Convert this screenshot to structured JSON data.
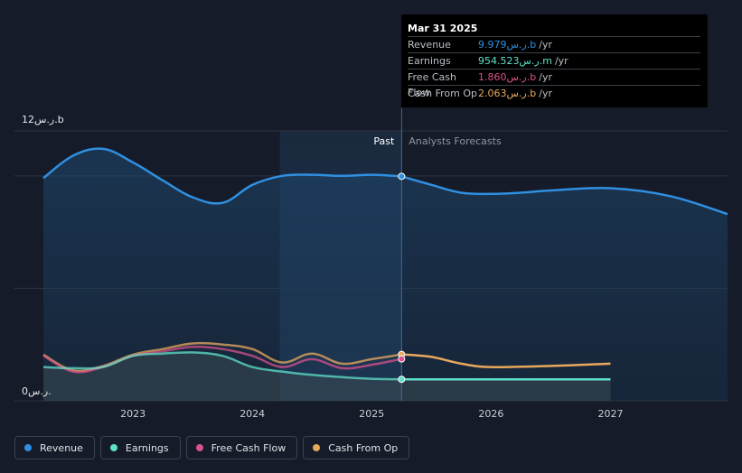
{
  "colors": {
    "revenue": "#2f8fe0",
    "earnings": "#5fe0c8",
    "free_cash_flow": "#d9508c",
    "cash_from_op": "#e8a85c",
    "grid": "#2c3342",
    "past_shade": "#1b2a3e"
  },
  "tooltip": {
    "date": "Mar 31 2025",
    "rows": [
      {
        "name": "Revenue",
        "value": "9.979ر.س.b",
        "unit": "/yr",
        "color": "#2f8fe0"
      },
      {
        "name": "Earnings",
        "value": "954.523ر.س.m",
        "unit": "/yr",
        "color": "#5fe0c8"
      },
      {
        "name": "Free Cash Flow",
        "value": "1.860ر.س.b",
        "unit": "/yr",
        "color": "#d9508c"
      },
      {
        "name": "Cash From Op",
        "value": "2.063ر.س.b",
        "unit": "/yr",
        "color": "#e8a85c"
      }
    ]
  },
  "regions": {
    "past": "Past",
    "forecast": "Analysts Forecasts"
  },
  "legend": [
    {
      "label": "Revenue",
      "color": "#2f8fe0"
    },
    {
      "label": "Earnings",
      "color": "#5fe0c8"
    },
    {
      "label": "Free Cash Flow",
      "color": "#d9508c"
    },
    {
      "label": "Cash From Op",
      "color": "#e8a85c"
    }
  ],
  "chart_data": {
    "type": "line",
    "y_top_label": "12ر.س.b",
    "y_bottom_label": "0ر.س.",
    "ylim": [
      0,
      12
    ],
    "xlim": [
      2022.25,
      2027.98
    ],
    "x_ticks": [
      2023,
      2024,
      2025,
      2026,
      2027
    ],
    "x_tick_labels": [
      "2023",
      "2024",
      "2025",
      "2026",
      "2027"
    ],
    "past_start": 2024.23,
    "past_end": 2025.25,
    "highlight_x": 2025.25,
    "grid": true,
    "series": [
      {
        "name": "Revenue",
        "key": "revenue",
        "area": true,
        "points": [
          [
            2022.25,
            9.9
          ],
          [
            2022.5,
            10.9
          ],
          [
            2022.75,
            11.2
          ],
          [
            2023.0,
            10.6
          ],
          [
            2023.25,
            9.8
          ],
          [
            2023.5,
            9.05
          ],
          [
            2023.75,
            8.8
          ],
          [
            2024.0,
            9.6
          ],
          [
            2024.25,
            10.0
          ],
          [
            2024.5,
            10.05
          ],
          [
            2024.75,
            10.0
          ],
          [
            2025.0,
            10.05
          ],
          [
            2025.25,
            9.979
          ],
          [
            2025.5,
            9.6
          ],
          [
            2025.75,
            9.25
          ],
          [
            2026.0,
            9.2
          ],
          [
            2026.25,
            9.25
          ],
          [
            2026.5,
            9.35
          ],
          [
            2027.0,
            9.45
          ],
          [
            2027.5,
            9.1
          ],
          [
            2027.98,
            8.3
          ]
        ]
      },
      {
        "name": "Earnings",
        "key": "earnings",
        "area": true,
        "points": [
          [
            2022.25,
            1.5
          ],
          [
            2022.5,
            1.45
          ],
          [
            2022.75,
            1.5
          ],
          [
            2023.0,
            2.0
          ],
          [
            2023.25,
            2.1
          ],
          [
            2023.5,
            2.15
          ],
          [
            2023.75,
            2.0
          ],
          [
            2024.0,
            1.5
          ],
          [
            2024.25,
            1.3
          ],
          [
            2024.5,
            1.15
          ],
          [
            2024.75,
            1.05
          ],
          [
            2025.0,
            0.98
          ],
          [
            2025.25,
            0.955
          ],
          [
            2025.5,
            0.95
          ],
          [
            2026.0,
            0.95
          ],
          [
            2026.5,
            0.95
          ],
          [
            2027.0,
            0.95
          ]
        ]
      },
      {
        "name": "Free Cash Flow",
        "key": "free_cash_flow",
        "area": false,
        "points": [
          [
            2022.25,
            2.0
          ],
          [
            2022.5,
            1.3
          ],
          [
            2022.75,
            1.5
          ],
          [
            2023.0,
            2.0
          ],
          [
            2023.25,
            2.2
          ],
          [
            2023.5,
            2.4
          ],
          [
            2023.75,
            2.3
          ],
          [
            2024.0,
            2.0
          ],
          [
            2024.25,
            1.5
          ],
          [
            2024.5,
            1.85
          ],
          [
            2024.75,
            1.45
          ],
          [
            2025.0,
            1.6
          ],
          [
            2025.25,
            1.86
          ]
        ]
      },
      {
        "name": "Cash From Op",
        "key": "cash_from_op",
        "area": false,
        "points": [
          [
            2022.25,
            2.05
          ],
          [
            2022.5,
            1.35
          ],
          [
            2022.75,
            1.55
          ],
          [
            2023.0,
            2.05
          ],
          [
            2023.25,
            2.3
          ],
          [
            2023.5,
            2.55
          ],
          [
            2023.75,
            2.5
          ],
          [
            2024.0,
            2.3
          ],
          [
            2024.25,
            1.7
          ],
          [
            2024.5,
            2.1
          ],
          [
            2024.75,
            1.65
          ],
          [
            2025.0,
            1.85
          ],
          [
            2025.25,
            2.063
          ],
          [
            2025.5,
            1.95
          ],
          [
            2025.75,
            1.65
          ],
          [
            2026.0,
            1.5
          ],
          [
            2026.5,
            1.55
          ],
          [
            2027.0,
            1.65
          ]
        ]
      }
    ]
  }
}
